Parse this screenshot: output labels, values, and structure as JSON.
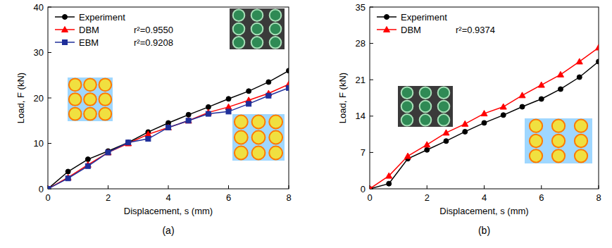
{
  "chart_data": [
    {
      "type": "line",
      "panel": "(a)",
      "x_label": "Displacement, s (mm)",
      "y_label": "Load, F (kN)",
      "x": [
        0,
        0.67,
        1.33,
        2,
        2.67,
        3.33,
        4,
        4.67,
        5.33,
        6,
        6.67,
        7.33,
        8
      ],
      "series": [
        {
          "name": "Experiment",
          "color": "#000000",
          "marker": "circle",
          "values": [
            0,
            3.8,
            6.5,
            8.3,
            10.2,
            12.5,
            14.5,
            16.3,
            18.0,
            19.8,
            21.5,
            23.5,
            26.0
          ]
        },
        {
          "name": "DBM",
          "color": "#ff0000",
          "marker": "triangle",
          "values": [
            0,
            2.5,
            5.3,
            8.0,
            10.0,
            12.0,
            13.5,
            15.0,
            16.8,
            18.0,
            19.5,
            21.0,
            23.0
          ]
        },
        {
          "name": "EBM",
          "color": "#1f2f9a",
          "marker": "square",
          "values": [
            0,
            2.3,
            5.0,
            8.0,
            10.2,
            11.0,
            13.5,
            15.0,
            16.5,
            17.0,
            18.7,
            20.5,
            22.2
          ]
        }
      ],
      "annotations": [
        {
          "text": "r²=0.9550",
          "series": "DBM"
        },
        {
          "text": "r²=0.9208",
          "series": "EBM"
        }
      ],
      "xlim": [
        0,
        8
      ],
      "xticks": [
        0,
        2,
        4,
        6,
        8
      ],
      "ylim": [
        0,
        40
      ],
      "yticks": [
        0,
        10,
        20,
        30,
        40
      ],
      "legend": "upper left",
      "grid": false
    },
    {
      "type": "line",
      "panel": "(b)",
      "x_label": "Displacement, s (mm)",
      "y_label": "Load, F (kN)",
      "x": [
        0,
        0.67,
        1.33,
        2,
        2.67,
        3.33,
        4,
        4.67,
        5.33,
        6,
        6.67,
        7.33,
        8
      ],
      "series": [
        {
          "name": "Experiment",
          "color": "#000000",
          "marker": "circle",
          "values": [
            0,
            1.0,
            5.8,
            7.5,
            9.2,
            11.0,
            12.7,
            14.2,
            15.8,
            17.3,
            19.2,
            21.5,
            24.5
          ]
        },
        {
          "name": "DBM",
          "color": "#ff0000",
          "marker": "triangle",
          "values": [
            0,
            2.5,
            6.3,
            8.5,
            10.8,
            12.5,
            14.5,
            15.8,
            18.0,
            20.0,
            22.0,
            24.5,
            27.2
          ]
        }
      ],
      "annotations": [
        {
          "text": "r²=0.9374",
          "series": "DBM"
        }
      ],
      "xlim": [
        0,
        8
      ],
      "xticks": [
        0,
        2,
        4,
        6,
        8
      ],
      "ylim": [
        0,
        35
      ],
      "yticks": [
        0,
        7,
        14,
        21,
        28,
        35
      ],
      "legend": "upper left",
      "grid": false
    }
  ]
}
